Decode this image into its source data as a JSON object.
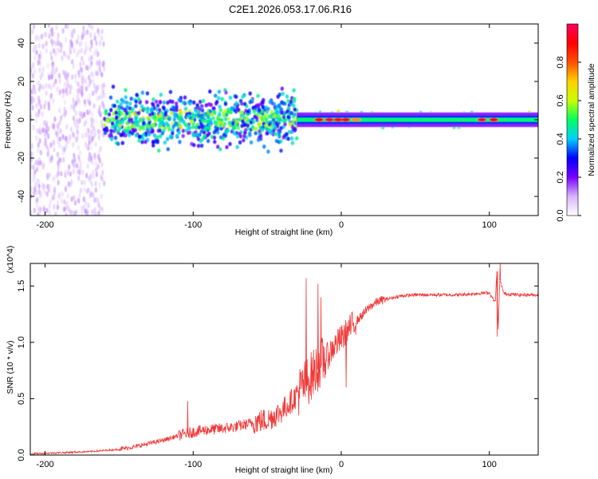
{
  "title": "C2E1.2026.053.17.06.R16",
  "chart_data": [
    {
      "type": "heatmap",
      "title": "C2E1.2026.053.17.06.R16",
      "xlabel": "Height of straight line (km)",
      "ylabel": "Frequency (Hz)",
      "xlim": [
        -210,
        133
      ],
      "ylim": [
        -50,
        50
      ],
      "xticks": [
        -200,
        -100,
        0,
        100
      ],
      "yticks": [
        -40,
        -20,
        0,
        20,
        40
      ],
      "colorbar": {
        "label": "Normalized spectral amplitude",
        "range": [
          0.0,
          1.0
        ],
        "ticks": [
          0.0,
          0.2,
          0.4,
          0.6,
          0.8
        ],
        "tick_labels": [
          "0.0",
          "0.2",
          "0.4",
          "0.6",
          "0.8"
        ],
        "colormap": [
          "#ffffff",
          "#d8b4ff",
          "#7a00ff",
          "#0000ff",
          "#00d0ff",
          "#00ff60",
          "#c8ff00",
          "#ffd000",
          "#ff5000",
          "#ff0000",
          "#ff0060"
        ]
      },
      "regions": [
        {
          "x_range": [
            -210,
            -160
          ],
          "freq_spread": [
            -50,
            50
          ],
          "amplitude": 0.1,
          "description": "broadband noise"
        },
        {
          "x_range": [
            -160,
            -30
          ],
          "freq_spread": [
            -12,
            12
          ],
          "amplitude": 0.35,
          "description": "turbulent band"
        },
        {
          "x_range": [
            -30,
            133
          ],
          "freq_spread": [
            -3,
            3
          ],
          "amplitude": 0.6,
          "description": "narrow carrier"
        }
      ],
      "peaks": [
        [
          -15,
          0.9
        ],
        [
          -8,
          0.95
        ],
        [
          -2,
          0.9
        ],
        [
          3,
          0.9
        ],
        [
          10,
          0.75
        ],
        [
          95,
          0.95
        ],
        [
          103,
          0.9
        ]
      ]
    },
    {
      "type": "line",
      "xlabel": "Height of straight line (km)",
      "ylabel": "SNR (10 * v/v)",
      "y_multiplier": "(x10^4)",
      "xlim": [
        -210,
        133
      ],
      "ylim": [
        0.0,
        1.7
      ],
      "xticks": [
        -200,
        -100,
        0,
        100
      ],
      "yticks": [
        0.0,
        0.5,
        1.0,
        1.5
      ],
      "ytick_labels": [
        "0.0",
        "0.5",
        "1.0",
        "1.5"
      ],
      "color": "#f03a3a",
      "series": [
        {
          "name": "SNR",
          "x": [
            -210,
            -190,
            -170,
            -150,
            -140,
            -130,
            -120,
            -110,
            -100,
            -90,
            -80,
            -70,
            -60,
            -50,
            -40,
            -35,
            -30,
            -25,
            -20,
            -15,
            -10,
            -5,
            0,
            5,
            10,
            15,
            20,
            25,
            30,
            40,
            50,
            60,
            70,
            80,
            90,
            100,
            104,
            105,
            106,
            107,
            110,
            120,
            133
          ],
          "y": [
            0.01,
            0.02,
            0.03,
            0.05,
            0.07,
            0.1,
            0.13,
            0.17,
            0.2,
            0.22,
            0.23,
            0.25,
            0.28,
            0.3,
            0.38,
            0.45,
            0.52,
            0.6,
            0.68,
            0.78,
            0.85,
            0.95,
            1.02,
            1.1,
            1.18,
            1.25,
            1.32,
            1.36,
            1.38,
            1.41,
            1.42,
            1.42,
            1.42,
            1.42,
            1.43,
            1.44,
            1.35,
            1.63,
            1.1,
            1.55,
            1.43,
            1.42,
            1.42
          ]
        }
      ],
      "spikes": [
        [
          -104,
          0.48
        ],
        [
          -24,
          1.57
        ],
        [
          -16,
          1.52
        ],
        [
          -14,
          1.4
        ],
        [
          3,
          0.6
        ],
        [
          105,
          1.05
        ],
        [
          107,
          1.7
        ]
      ]
    }
  ]
}
